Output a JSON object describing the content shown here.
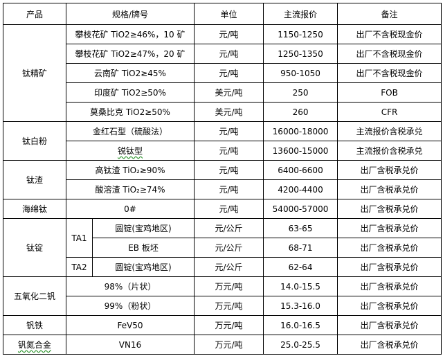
{
  "headers": [
    "产品",
    "规格/牌号",
    "单位",
    "主流报价",
    "备注"
  ],
  "groups": {
    "ti_concentrate": {
      "product": "钛精矿",
      "rows": [
        {
          "spec": "攀枝花矿 TiO2≥46%，10 矿",
          "unit": "元/吨",
          "price": "1150-1250",
          "note": "出厂不含税现金价"
        },
        {
          "spec": "攀枝花矿 TiO2≥47%，20 矿",
          "unit": "元/吨",
          "price": "1250-1350",
          "note": "出厂不含税现金价"
        },
        {
          "spec": "云南矿 TiO2≥45%",
          "unit": "元/吨",
          "price": "950-1050",
          "note": "出厂不含税现金价"
        },
        {
          "spec": "印度矿 TiO2≥50%",
          "unit": "美元/吨",
          "price": "250",
          "note": "FOB"
        },
        {
          "spec": "莫桑比克 TiO2≥50%",
          "unit": "美元/吨",
          "price": "260",
          "note": "CFR"
        }
      ]
    },
    "ti_dioxide": {
      "product": "钛白粉",
      "rows": [
        {
          "spec": "金红石型（硫酸法）",
          "unit": "元/吨",
          "price": "16000-18000",
          "note": "主流报价含税承兑"
        },
        {
          "spec": "锐钛型",
          "unit": "元/吨",
          "price": "13600-15000",
          "note": "主流报价含税承兑"
        }
      ]
    },
    "ti_slag": {
      "product": "钛渣",
      "rows": [
        {
          "spec": "高钛渣 TiO₂≥90%",
          "unit": "元/吨",
          "price": "6400-6600",
          "note": "出厂含税承兑价"
        },
        {
          "spec": "酸溶渣 TiO₂≥74%",
          "unit": "元/吨",
          "price": "4200-4400",
          "note": "出厂含税承兑价"
        }
      ]
    },
    "sponge_ti": {
      "product": "海绵钛",
      "rows": [
        {
          "spec": "0#",
          "unit": "元/吨",
          "price": "54000-57000",
          "note": "出厂含税承兑价"
        }
      ]
    },
    "ti_ingot": {
      "product": "钛锭",
      "grade1": "TA1",
      "grade2": "TA2",
      "rows": [
        {
          "spec": "圆锭(宝鸡地区)",
          "unit": "元/公斤",
          "price": "63-65",
          "note": "出厂含税承兑价"
        },
        {
          "spec": "EB 板坯",
          "unit": "元/公斤",
          "price": "68-71",
          "note": "出厂含税承兑价"
        },
        {
          "spec": "圆锭(宝鸡地区)",
          "unit": "元/公斤",
          "price": "62-64",
          "note": "出厂含税承兑价"
        }
      ]
    },
    "v2o5": {
      "product": "五氧化二钒",
      "rows": [
        {
          "spec": "98%（片状）",
          "unit": "万元/吨",
          "price": "14.0-15.5",
          "note": "出厂含税承兑价"
        },
        {
          "spec": "99%（粉状）",
          "unit": "万元/吨",
          "price": "15.3-16.0",
          "note": "出厂含税承兑价"
        }
      ]
    },
    "fev": {
      "product": "钒铁",
      "rows": [
        {
          "spec": "FeV50",
          "unit": "万元/吨",
          "price": "16.0-16.5",
          "note": "出厂含税承兑价"
        }
      ]
    },
    "vn": {
      "product": "钒氮合金",
      "rows": [
        {
          "spec": "VN16",
          "unit": "万元/吨",
          "price": "25.0-25.5",
          "note": "出厂含税承兑价"
        }
      ]
    }
  }
}
